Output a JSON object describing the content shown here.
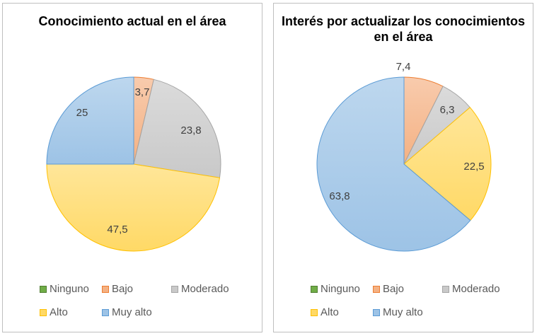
{
  "colors": {
    "Ninguno": {
      "fill": "#70ad47",
      "stroke": "#507e32",
      "light": "#a9d18e"
    },
    "Bajo": {
      "fill": "#f4b183",
      "stroke": "#ed7d31",
      "light": "#f8cbad"
    },
    "Moderado": {
      "fill": "#c9c9c9",
      "stroke": "#a5a5a5",
      "light": "#dbdbdb"
    },
    "Alto": {
      "fill": "#ffd966",
      "stroke": "#ffc000",
      "light": "#ffe699"
    },
    "Muy alto": {
      "fill": "#9dc3e6",
      "stroke": "#5b9bd5",
      "light": "#bdd7ee"
    }
  },
  "chart_data": [
    {
      "type": "pie",
      "title": "Conocimiento actual en el área",
      "categories": [
        "Ninguno",
        "Bajo",
        "Moderado",
        "Alto",
        "Muy alto"
      ],
      "values": [
        0,
        3.7,
        23.8,
        47.5,
        25
      ],
      "data_labels": [
        "",
        "3,7",
        "23,8",
        "47,5",
        "25"
      ],
      "legend": {
        "position": "bottom",
        "entries": [
          "Ninguno",
          "Bajo",
          "Moderado",
          "Alto",
          "Muy alto"
        ]
      }
    },
    {
      "type": "pie",
      "title": "Interés por actualizar los conocimientos en el área",
      "categories": [
        "Ninguno",
        "Bajo",
        "Moderado",
        "Alto",
        "Muy alto"
      ],
      "values": [
        0,
        7.4,
        6.3,
        22.5,
        63.8
      ],
      "data_labels": [
        "",
        "7,4",
        "6,3",
        "22,5",
        "63,8"
      ],
      "legend": {
        "position": "bottom",
        "entries": [
          "Ninguno",
          "Bajo",
          "Moderado",
          "Alto",
          "Muy alto"
        ]
      }
    }
  ]
}
